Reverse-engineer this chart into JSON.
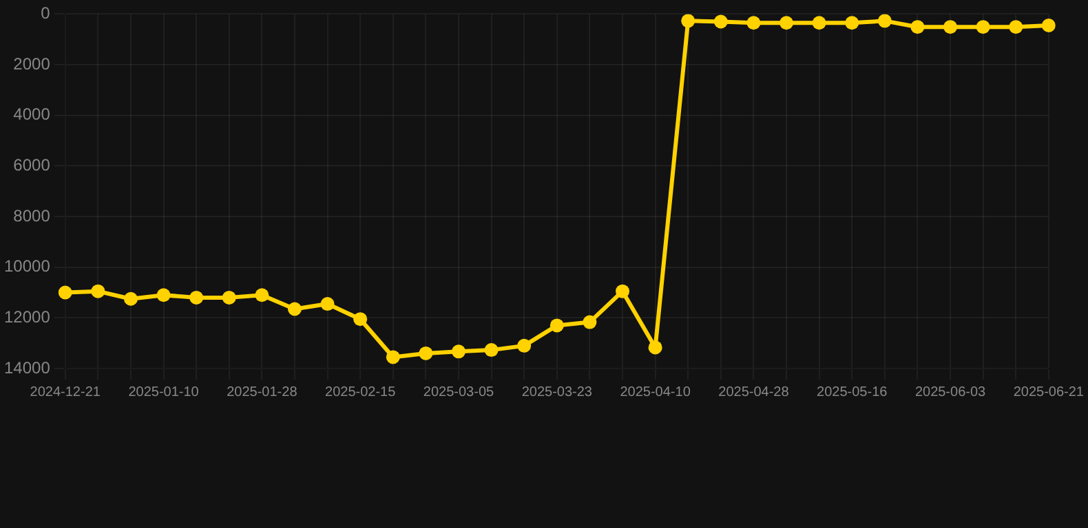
{
  "chart_data": {
    "type": "line",
    "categories": [
      "2024-12-21",
      null,
      null,
      "2025-01-10",
      null,
      null,
      "2025-01-28",
      null,
      null,
      "2025-02-15",
      null,
      null,
      "2025-03-05",
      null,
      null,
      "2025-03-23",
      null,
      null,
      "2025-04-10",
      null,
      null,
      "2025-04-28",
      null,
      null,
      "2025-05-16",
      null,
      null,
      "2025-06-03",
      null,
      null,
      "2025-06-21"
    ],
    "series": [
      {
        "color": "#ffd200",
        "values": [
          11000,
          10950,
          11250,
          11100,
          11200,
          11200,
          11100,
          11650,
          11450,
          12050,
          13550,
          13400,
          13330,
          13270,
          13100,
          12300,
          12170,
          10950,
          13170,
          270,
          300,
          350,
          350,
          350,
          350,
          270,
          510,
          510,
          510,
          510,
          450
        ]
      }
    ],
    "ylim": [
      14000,
      0
    ],
    "yticks": [
      0,
      2000,
      4000,
      6000,
      8000,
      10000,
      12000,
      14000
    ],
    "grid": true,
    "marker": "circle",
    "line_style": "solid"
  }
}
